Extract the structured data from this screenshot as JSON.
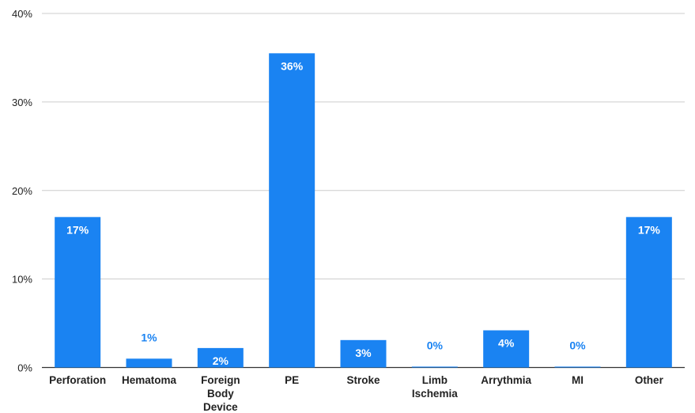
{
  "chart_data": {
    "type": "bar",
    "title": "",
    "xlabel": "",
    "ylabel": "",
    "categories": [
      [
        "Perforation"
      ],
      [
        "Hematoma"
      ],
      [
        "Foreign",
        "Body",
        "Device"
      ],
      [
        "PE"
      ],
      [
        "Stroke"
      ],
      [
        "Limb",
        "Ischemia"
      ],
      [
        "Arrythmia"
      ],
      [
        "MI"
      ],
      [
        "Other"
      ]
    ],
    "values": [
      17,
      1,
      2.2,
      35.5,
      3.1,
      0.1,
      4.2,
      0.1,
      17
    ],
    "data_labels": [
      "17%",
      "1%",
      "2%",
      "36%",
      "3%",
      "0%",
      "4%",
      "0%",
      "17%"
    ],
    "ylim": [
      0,
      40
    ],
    "yticks": [
      0,
      10,
      20,
      30,
      40
    ],
    "ytick_labels": [
      "0%",
      "10%",
      "20%",
      "30%",
      "40%"
    ],
    "grid": true,
    "legend": "none",
    "colors": {
      "bar": "#1a83f2",
      "label_inside": "#ffffff",
      "label_outside": "#1a83f2",
      "grid": "#cccccc",
      "baseline": "#333333"
    }
  }
}
